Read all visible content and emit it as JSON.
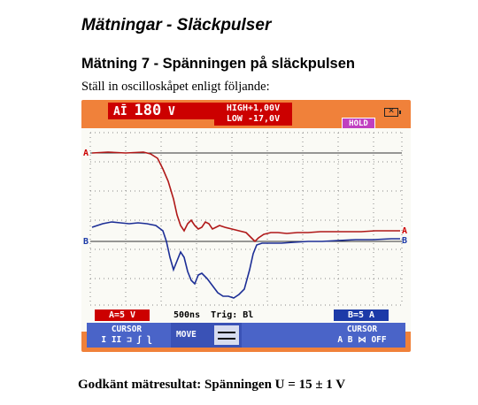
{
  "heading": "Mätningar - Släckpulser",
  "section": "Mätning 7 - Spänningen på släckpulsen",
  "intro": "Ställ in oscilloskåpet enligt följande:",
  "result": "Godkänt mätresultat: Spänningen U = 15 ± 1 V",
  "scope": {
    "channel_prefix": "A",
    "channel_symbol": "Ī",
    "reading": "180",
    "reading_unit": "V",
    "high": "HIGH+1,00V",
    "low": "LOW -17,0V",
    "hold": "HOLD",
    "marker_a": "A",
    "marker_b": "B",
    "a_scale": "A=5 V",
    "timebase": "500ns",
    "trigger": "Trig: Bl",
    "b_scale": "B=5 A",
    "softkeys": {
      "cursor1_label": "CURSOR",
      "cursor1_options": "I II  ⊐ ʃ ʅ",
      "move_label": "MOVE",
      "cursor2_label": "CURSOR",
      "cursor2_options": "A B ⋈ OFF"
    },
    "colors": {
      "frame": "#f0813a",
      "channel_a": "#cc0000",
      "channel_b": "#1c3aa8",
      "softkey_bg": "#4a64c8"
    }
  }
}
